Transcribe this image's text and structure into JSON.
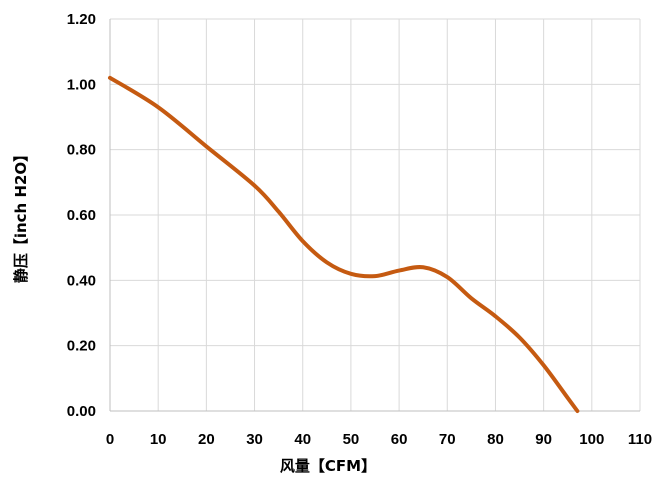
{
  "chart_data": {
    "type": "line",
    "title": "",
    "xlabel": "风量【CFM】",
    "ylabel": "静压【inch H2O】",
    "xlim": [
      0,
      110
    ],
    "ylim": [
      0,
      1.2
    ],
    "x_ticks": [
      0,
      10,
      20,
      30,
      40,
      50,
      60,
      70,
      80,
      90,
      100,
      110
    ],
    "y_ticks": [
      "0.00",
      "0.20",
      "0.40",
      "0.60",
      "0.80",
      "1.00",
      "1.20"
    ],
    "grid": true,
    "legend": "none",
    "series": [
      {
        "color": "#c55a11",
        "x": [
          0,
          10,
          20,
          30,
          35,
          40,
          45,
          50,
          55,
          60,
          65,
          70,
          75,
          80,
          85,
          90,
          95,
          97
        ],
        "y": [
          1.02,
          0.93,
          0.81,
          0.69,
          0.61,
          0.52,
          0.455,
          0.42,
          0.413,
          0.43,
          0.44,
          0.41,
          0.345,
          0.29,
          0.225,
          0.14,
          0.04,
          0.0
        ]
      }
    ]
  }
}
